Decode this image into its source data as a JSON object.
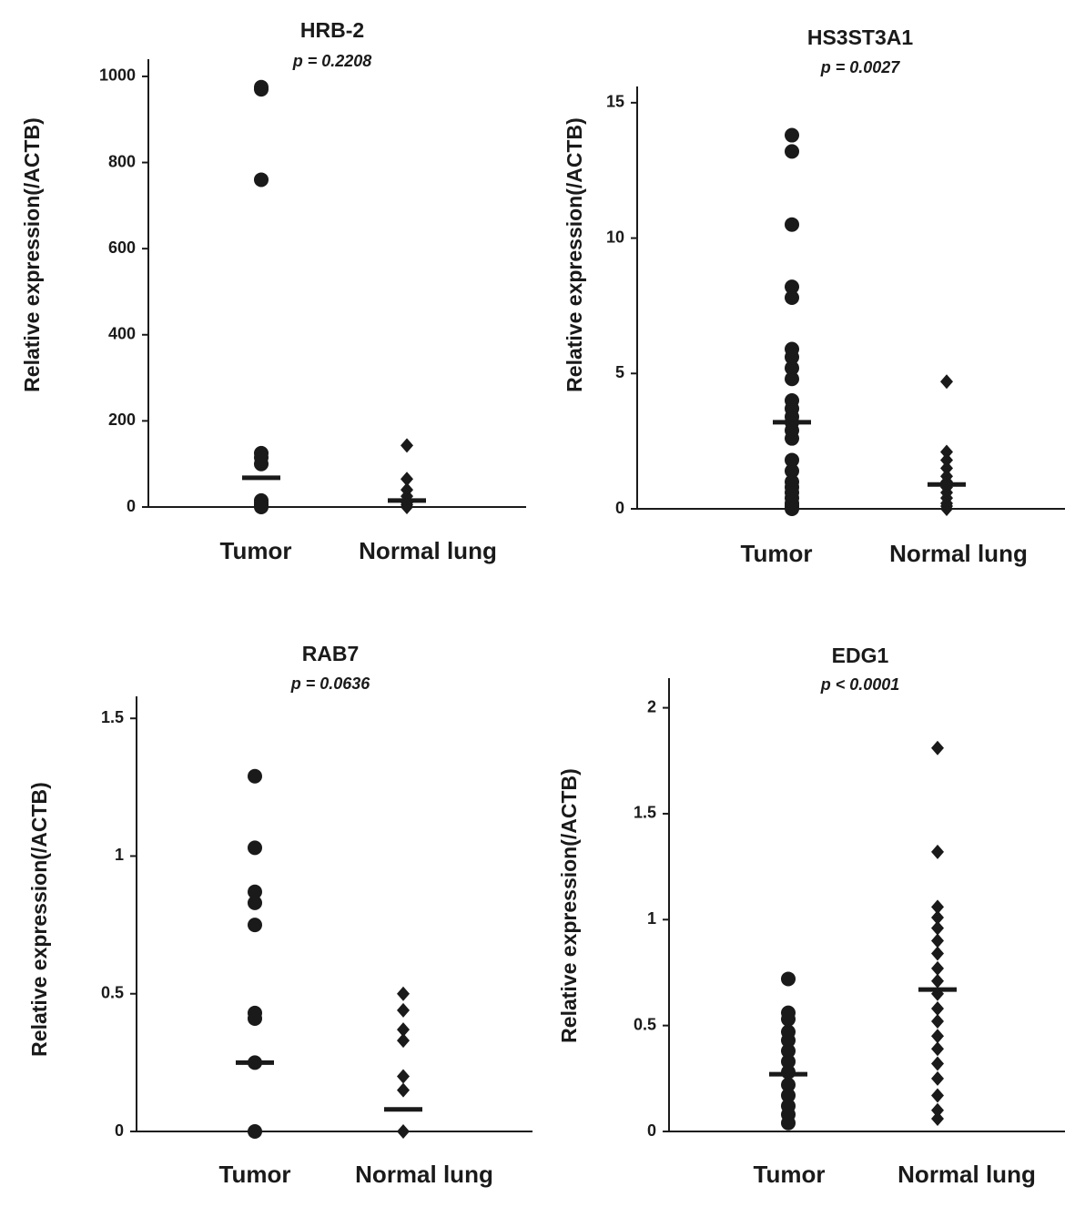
{
  "chart_data": [
    {
      "type": "dotplot",
      "title": "HRB-2",
      "subtitle": "p = 0.2208",
      "ylabel": "Relative expression(/ACTB)",
      "categories": [
        "Tumor",
        "Normal lung"
      ],
      "markers": [
        "circle",
        "diamond"
      ],
      "color": "#1a1a1a",
      "points": [
        [
          975,
          970,
          760,
          125,
          115,
          100,
          15,
          10,
          5,
          0
        ],
        [
          143,
          65,
          40,
          25,
          15,
          10,
          5,
          0
        ]
      ],
      "medians": [
        68,
        15
      ],
      "ylim": [
        0,
        1040
      ],
      "yticks": [
        0,
        200,
        400,
        600,
        800,
        1000
      ]
    },
    {
      "type": "dotplot",
      "title": "HS3ST3A1",
      "subtitle": "p = 0.0027",
      "ylabel": "Relative expression(/ACTB)",
      "categories": [
        "Tumor",
        "Normal lung"
      ],
      "markers": [
        "circle",
        "diamond"
      ],
      "color": "#1a1a1a",
      "points": [
        [
          13.8,
          13.2,
          10.5,
          8.2,
          7.8,
          5.9,
          5.6,
          5.2,
          4.8,
          4.0,
          3.7,
          3.4,
          3.2,
          2.9,
          2.6,
          1.8,
          1.4,
          1.0,
          0.8,
          0.6,
          0.4,
          0.2,
          0.1,
          0
        ],
        [
          4.7,
          2.1,
          1.8,
          1.5,
          1.2,
          1.0,
          0.8,
          0.6,
          0.4,
          0.2,
          0.1,
          0
        ]
      ],
      "medians": [
        3.2,
        0.9
      ],
      "ylim": [
        0,
        15.6
      ],
      "yticks": [
        0,
        5,
        10,
        15
      ]
    },
    {
      "type": "dotplot",
      "title": "RAB7",
      "subtitle": "p = 0.0636",
      "ylabel": "Relative expression(/ACTB)",
      "categories": [
        "Tumor",
        "Normal lung"
      ],
      "markers": [
        "circle",
        "diamond"
      ],
      "color": "#1a1a1a",
      "points": [
        [
          1.29,
          1.03,
          0.87,
          0.83,
          0.75,
          0.43,
          0.41,
          0.25,
          0
        ],
        [
          0.5,
          0.44,
          0.37,
          0.33,
          0.2,
          0.15,
          0
        ]
      ],
      "medians": [
        0.25,
        0.08
      ],
      "ylim": [
        0,
        1.58
      ],
      "yticks": [
        0,
        0.5,
        1,
        1.5
      ]
    },
    {
      "type": "dotplot",
      "title": "EDG1",
      "subtitle": "p < 0.0001",
      "ylabel": "Relative expression(/ACTB)",
      "categories": [
        "Tumor",
        "Normal lung"
      ],
      "markers": [
        "circle",
        "diamond"
      ],
      "color": "#1a1a1a",
      "points": [
        [
          0.72,
          0.56,
          0.53,
          0.47,
          0.43,
          0.38,
          0.33,
          0.28,
          0.22,
          0.17,
          0.12,
          0.08,
          0.04
        ],
        [
          1.81,
          1.32,
          1.06,
          1.01,
          0.96,
          0.9,
          0.84,
          0.77,
          0.71,
          0.65,
          0.58,
          0.52,
          0.45,
          0.39,
          0.32,
          0.25,
          0.17,
          0.1,
          0.06
        ]
      ],
      "medians": [
        0.27,
        0.67
      ],
      "ylim": [
        0,
        2.14
      ],
      "yticks": [
        0,
        0.5,
        1,
        1.5,
        2
      ]
    }
  ]
}
